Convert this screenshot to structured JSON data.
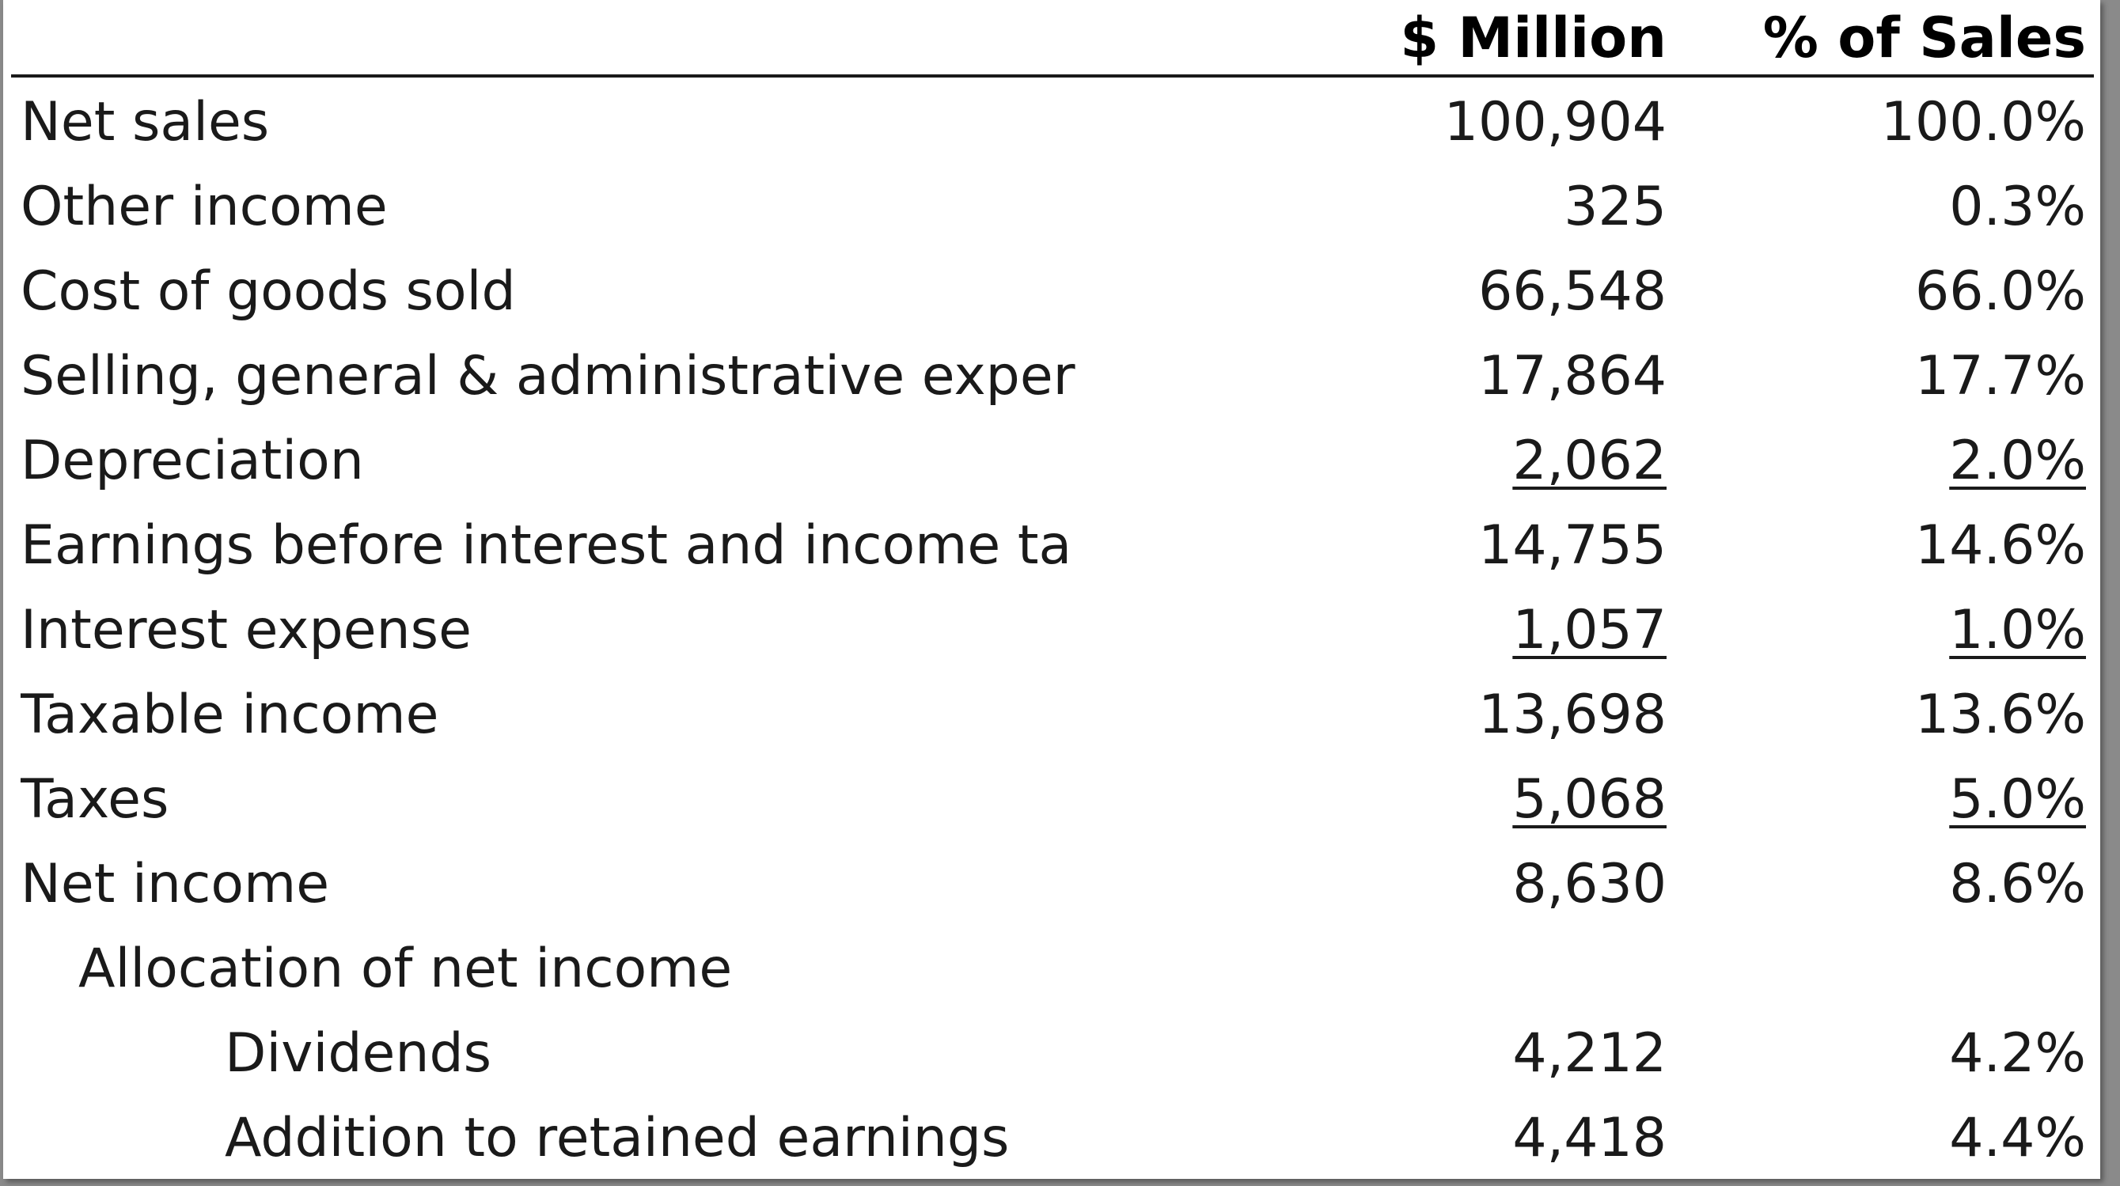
{
  "header": {
    "amount_label": "$ Million",
    "percent_label": "% of Sales"
  },
  "rows": [
    {
      "label": "Net sales",
      "amount": "100,904",
      "percent": "100.0%"
    },
    {
      "label": "Other income",
      "amount": "325",
      "percent": "0.3%"
    },
    {
      "label": "Cost of goods sold",
      "amount": "66,548",
      "percent": "66.0%"
    },
    {
      "label": "Selling, general & administrative exper",
      "amount": "17,864",
      "percent": "17.7%"
    },
    {
      "label": "Depreciation",
      "amount": "2,062",
      "percent": "2.0%",
      "underlined": true
    },
    {
      "label": "Earnings before interest and income ta",
      "amount": "14,755",
      "percent": "14.6%"
    },
    {
      "label": "Interest expense",
      "amount": "1,057",
      "percent": "1.0%",
      "underlined": true
    },
    {
      "label": "Taxable income",
      "amount": "13,698",
      "percent": "13.6%"
    },
    {
      "label": "Taxes",
      "amount": "5,068",
      "percent": "5.0%",
      "underlined": true
    },
    {
      "label": "Net income",
      "amount": "8,630",
      "percent": "8.6%"
    },
    {
      "label": "Allocation of net income",
      "amount": "",
      "percent": ""
    },
    {
      "label": "Dividends",
      "amount": "4,212",
      "percent": "4.2%"
    },
    {
      "label": "Addition to retained earnings",
      "amount": "4,418",
      "percent": "4.4%"
    }
  ]
}
